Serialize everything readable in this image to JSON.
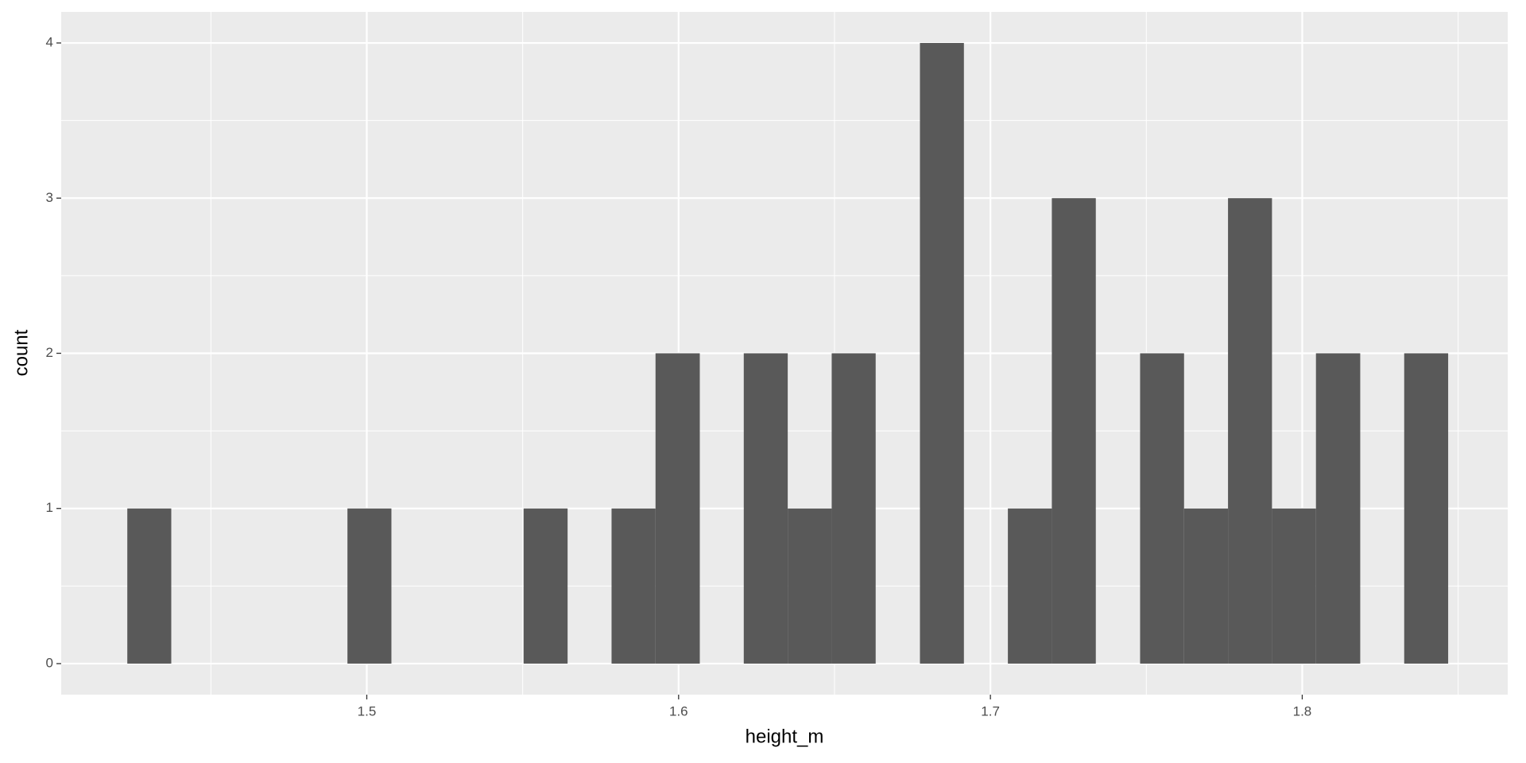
{
  "chart_data": {
    "type": "histogram",
    "x_label": "height_m",
    "y_label": "count",
    "bins": [
      1.4232,
      1.4373,
      1.4514,
      1.4656,
      1.4797,
      1.4938,
      1.5079,
      1.522,
      1.5362,
      1.5503,
      1.5644,
      1.5785,
      1.5926,
      1.6068,
      1.6209,
      1.635,
      1.6491,
      1.6632,
      1.6774,
      1.6915,
      1.7056,
      1.7197,
      1.7338,
      1.748,
      1.7621,
      1.7762,
      1.7903,
      1.8044,
      1.8186,
      1.8327,
      1.8468
    ],
    "values": [
      1,
      0,
      0,
      0,
      0,
      1,
      0,
      0,
      0,
      1,
      0,
      1,
      2,
      0,
      2,
      1,
      2,
      0,
      4,
      0,
      1,
      3,
      0,
      2,
      1,
      3,
      1,
      2,
      0,
      2
    ],
    "color": "#595959",
    "xlim": [
      1.402,
      1.8659
    ],
    "xticks": [
      1.5,
      1.6,
      1.7,
      1.8
    ],
    "ylim": [
      -0.2,
      4.2
    ],
    "yticks": [
      0,
      1,
      2,
      3,
      4
    ],
    "grid": true
  }
}
